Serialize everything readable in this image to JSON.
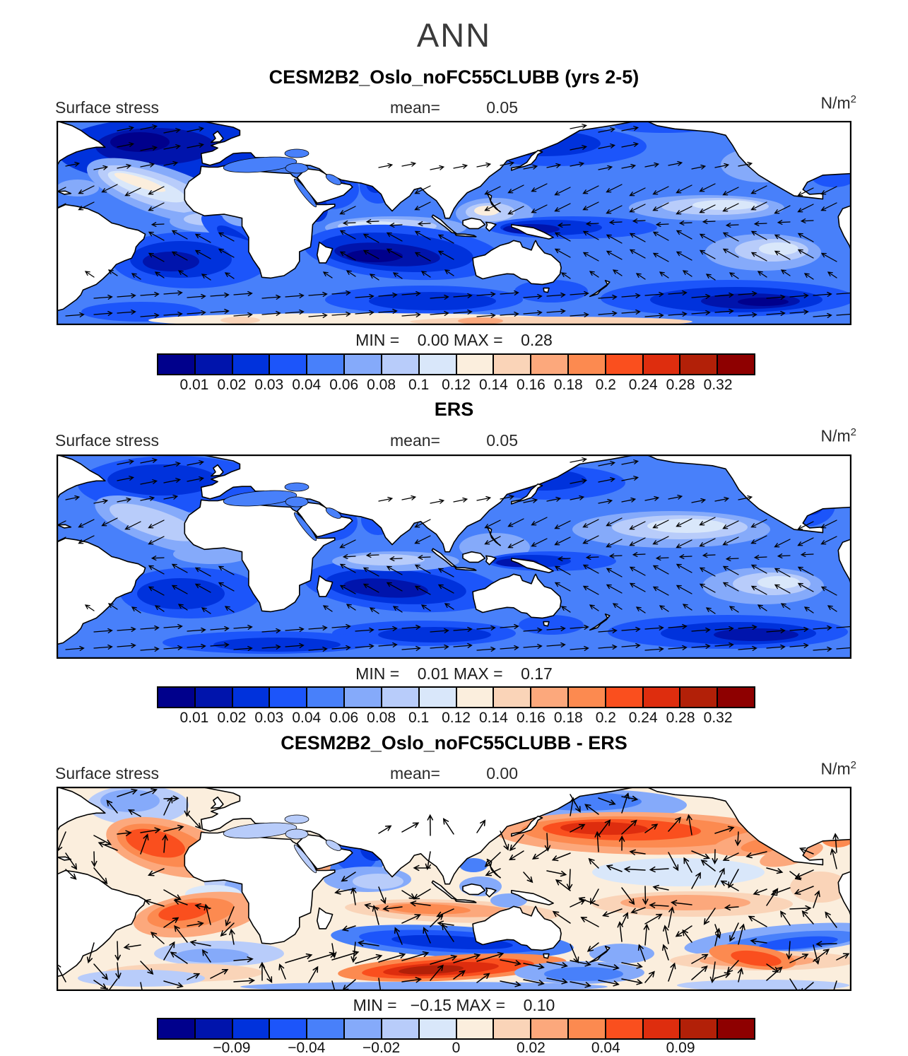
{
  "page": {
    "season_title": "ANN"
  },
  "palette": [
    "#00008C",
    "#0014AC",
    "#0032DC",
    "#1C55FA",
    "#4880FA",
    "#85AAFA",
    "#B8CCFA",
    "#D9E7FA",
    "#FBEEDD",
    "#FAD4B8",
    "#FCA87C",
    "#FC8A50",
    "#FA4F1E",
    "#DE2D0E",
    "#B22008",
    "#8E0000"
  ],
  "panels": [
    {
      "title": "CESM2B2_Oslo_noFC55CLUBB (yrs 2-5)",
      "field_label": "Surface stress",
      "mean_label": "mean=",
      "mean_value": "0.05",
      "units": "N/m²",
      "minmax_line": "MIN =    0.00 MAX =    0.28"
    },
    {
      "title": "ERS",
      "field_label": "Surface stress",
      "mean_label": "mean=",
      "mean_value": "0.05",
      "units": "N/m²",
      "minmax_line": "MIN =    0.01 MAX =    0.17"
    },
    {
      "title": "CESM2B2_Oslo_noFC55CLUBB - ERS",
      "field_label": "Surface stress",
      "mean_label": "mean=",
      "mean_value": "0.00",
      "units": "N/m²",
      "minmax_line": "MIN =   −0.15 MAX =    0.10"
    }
  ],
  "colorbars": {
    "linear_labels": [
      "0.01",
      "0.02",
      "0.03",
      "0.04",
      "0.06",
      "0.08",
      "0.1",
      "0.12",
      "0.14",
      "0.16",
      "0.18",
      "0.2",
      "0.24",
      "0.28",
      "0.32"
    ],
    "diff_labels": [
      {
        "text": "−0.09",
        "boundary": 2
      },
      {
        "text": "−0.04",
        "boundary": 4
      },
      {
        "text": "−0.02",
        "boundary": 6
      },
      {
        "text": "0",
        "boundary": 8
      },
      {
        "text": "0.02",
        "boundary": 10
      },
      {
        "text": "0.04",
        "boundary": 12
      },
      {
        "text": "0.09",
        "boundary": 14
      }
    ]
  },
  "chart_data": {
    "type": "heatmap",
    "subtype": "filled_contour_world_maps_with_vector_overlay",
    "season": "ANN",
    "variable": "Surface stress",
    "units": "N/m²",
    "n_color_cells": 16,
    "colorbar_colors": [
      "#00008C",
      "#0014AC",
      "#0032DC",
      "#1C55FA",
      "#4880FA",
      "#85AAFA",
      "#B8CCFA",
      "#D9E7FA",
      "#FBEEDD",
      "#FAD4B8",
      "#FCA87C",
      "#FC8A50",
      "#FA4F1E",
      "#DE2D0E",
      "#B22008",
      "#8E0000"
    ],
    "legend_position": "below_each_panel",
    "panels": [
      {
        "title": "CESM2B2_Oslo_noFC55CLUBB (yrs 2-5)",
        "mean": 0.05,
        "min": 0.0,
        "max": 0.28,
        "colorbar_tick_labels": [
          0.01,
          0.02,
          0.03,
          0.04,
          0.06,
          0.08,
          0.1,
          0.12,
          0.14,
          0.16,
          0.18,
          0.2,
          0.24,
          0.28,
          0.32
        ]
      },
      {
        "title": "ERS",
        "mean": 0.05,
        "min": 0.01,
        "max": 0.17,
        "colorbar_tick_labels": [
          0.01,
          0.02,
          0.03,
          0.04,
          0.06,
          0.08,
          0.1,
          0.12,
          0.14,
          0.16,
          0.18,
          0.2,
          0.24,
          0.28,
          0.32
        ]
      },
      {
        "title": "CESM2B2_Oslo_noFC55CLUBB - ERS",
        "mean": 0.0,
        "min": -0.15,
        "max": 0.1,
        "colorbar_tick_labels": [
          -0.09,
          -0.04,
          -0.02,
          0,
          0.02,
          0.04,
          0.09
        ]
      }
    ]
  }
}
